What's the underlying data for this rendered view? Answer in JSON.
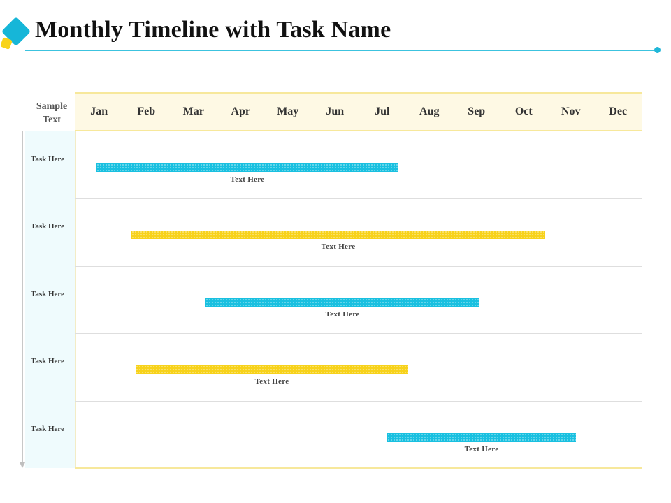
{
  "header": {
    "title": "Monthly Timeline with Task Name",
    "logo_icon": "diamond-logo-icon"
  },
  "table": {
    "corner_label": "Sample Text",
    "months": [
      "Jan",
      "Feb",
      "Mar",
      "Apr",
      "May",
      "Jun",
      "Jul",
      "Aug",
      "Sep",
      "Oct",
      "Nov",
      "Dec"
    ],
    "rows": [
      {
        "label": "Task Here",
        "bar_text": "Text Here",
        "color": "blue",
        "start_month": 0.45,
        "end_month": 6.85
      },
      {
        "label": "Task Here",
        "bar_text": "Text Here",
        "color": "yellow",
        "start_month": 1.18,
        "end_month": 9.95
      },
      {
        "label": "Task Here",
        "bar_text": "Text Here",
        "color": "blue",
        "start_month": 2.75,
        "end_month": 8.55
      },
      {
        "label": "Task Here",
        "bar_text": "Text Here",
        "color": "yellow",
        "start_month": 1.27,
        "end_month": 7.05
      },
      {
        "label": "Task Here",
        "bar_text": "Text Here",
        "color": "blue",
        "start_month": 6.6,
        "end_month": 10.6
      }
    ]
  },
  "colors": {
    "accent_blue": "#19c0e0",
    "accent_yellow": "#f7d21a",
    "header_fill": "#fef9e4",
    "left_column_fill": "#effbfd"
  }
}
